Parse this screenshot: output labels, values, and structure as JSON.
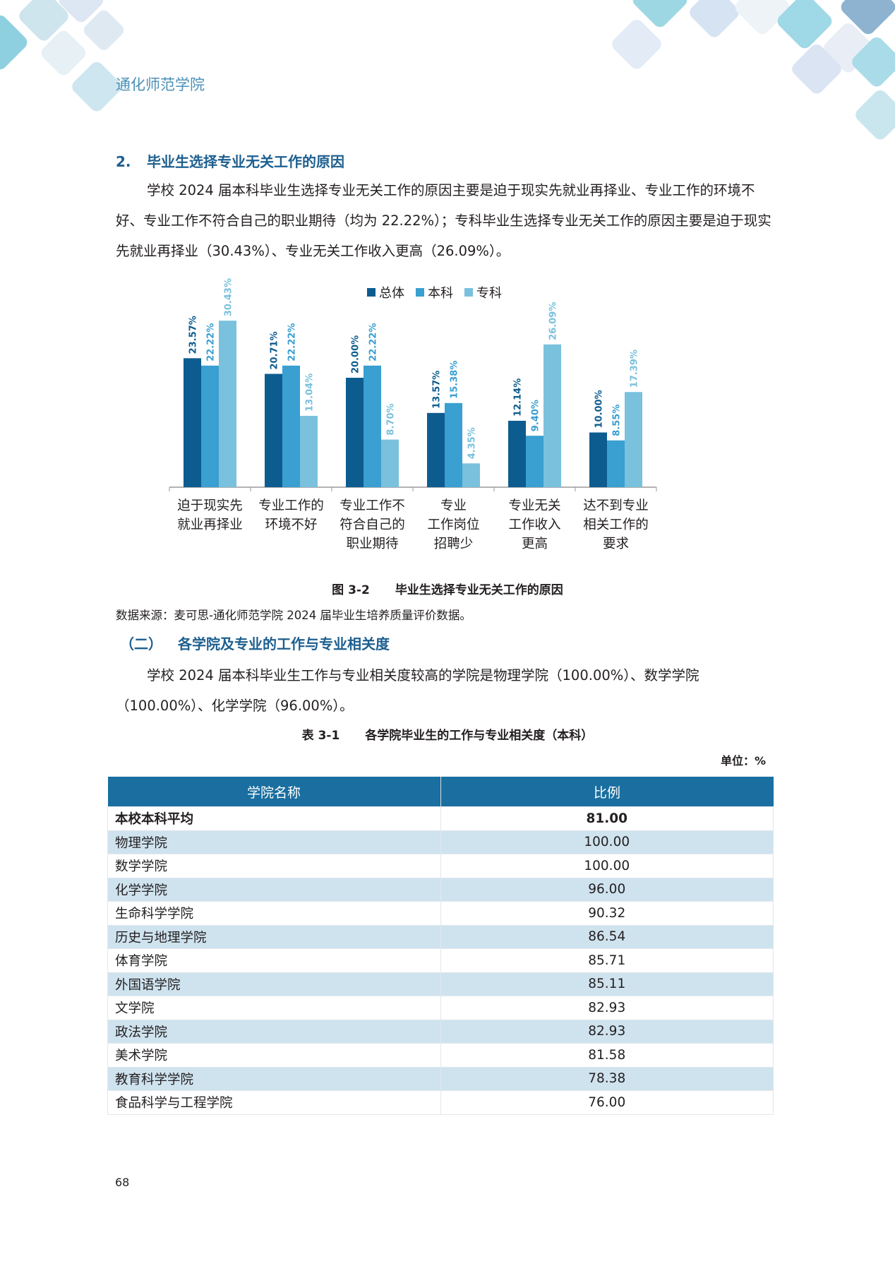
{
  "header": {
    "school_name": "通化师范学院"
  },
  "section": {
    "number": "2.",
    "title": "毕业生选择专业无关工作的原因",
    "paragraph": "学校 2024 届本科毕业生选择专业无关工作的原因主要是迫于现实先就业再择业、专业工作的环境不好、专业工作不符合自己的职业期待（均为 22.22%）；专科毕业生选择专业无关工作的原因主要是迫于现实先就业再择业（30.43%）、专业无关工作收入更高（26.09%）。"
  },
  "figure": {
    "number": "图 3-2",
    "title": "毕业生选择专业无关工作的原因",
    "source": "数据来源：麦可思-通化师范学院 2024 届毕业生培养质量评价数据。"
  },
  "chart_data": {
    "type": "bar",
    "categories": [
      [
        "迫于现实先",
        "就业再择业"
      ],
      [
        "专业工作的",
        "环境不好"
      ],
      [
        "专业工作不",
        "符合自己的",
        "职业期待"
      ],
      [
        "专业",
        "工作岗位",
        "招聘少"
      ],
      [
        "专业无关",
        "工作收入",
        "更高"
      ],
      [
        "达不到专业",
        "相关工作的",
        "要求"
      ]
    ],
    "series": [
      {
        "name": "总体",
        "color": "#0d5c8f",
        "values": [
          23.57,
          20.71,
          20.0,
          13.57,
          12.14,
          10.0
        ]
      },
      {
        "name": "本科",
        "color": "#3a9fd1",
        "values": [
          22.22,
          22.22,
          22.22,
          15.38,
          9.4,
          8.55
        ]
      },
      {
        "name": "专科",
        "color": "#79c1dd",
        "values": [
          30.43,
          13.04,
          8.7,
          4.35,
          26.09,
          17.39
        ]
      }
    ],
    "value_suffix": "%",
    "ylim": [
      0,
      40
    ],
    "legend_position": "top",
    "grid": false
  },
  "subsection": {
    "number": "（二）",
    "title": "各学院及专业的工作与专业相关度",
    "paragraph": "学校 2024 届本科毕业生工作与专业相关度较高的学院是物理学院（100.00%）、数学学院（100.00%）、化学学院（96.00%）。"
  },
  "table": {
    "number": "表 3-1",
    "title": "各学院毕业生的工作与专业相关度（本科）",
    "unit": "单位：%",
    "headers": [
      "学院名称",
      "比例"
    ],
    "rows": [
      {
        "name": "本校本科平均",
        "value": "81.00"
      },
      {
        "name": "物理学院",
        "value": "100.00"
      },
      {
        "name": "数学学院",
        "value": "100.00"
      },
      {
        "name": "化学学院",
        "value": "96.00"
      },
      {
        "name": "生命科学学院",
        "value": "90.32"
      },
      {
        "name": "历史与地理学院",
        "value": "86.54"
      },
      {
        "name": "体育学院",
        "value": "85.71"
      },
      {
        "name": "外国语学院",
        "value": "85.11"
      },
      {
        "name": "文学院",
        "value": "82.93"
      },
      {
        "name": "政法学院",
        "value": "82.93"
      },
      {
        "name": "美术学院",
        "value": "81.58"
      },
      {
        "name": "教育科学学院",
        "value": "78.38"
      },
      {
        "name": "食品科学与工程学院",
        "value": "76.00"
      }
    ]
  },
  "footer": {
    "page_number": "68"
  }
}
